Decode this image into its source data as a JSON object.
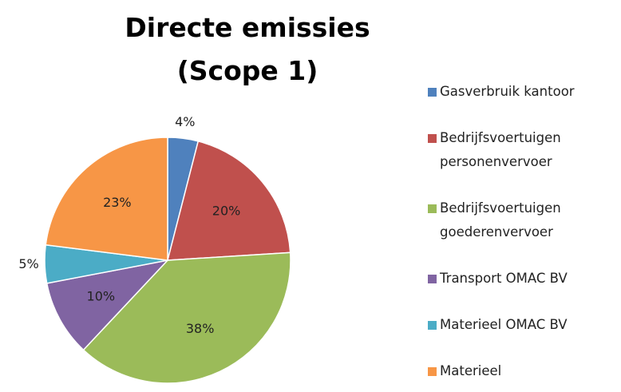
{
  "chart_data": {
    "type": "pie",
    "title": [
      "Directe emissies",
      "(Scope 1)"
    ],
    "categories": [
      "Gasverbruik kantoor",
      "Bedrijfsvoertuigen personenvervoer",
      "Bedrijfsvoertuigen goederenvervoer",
      "Transport OMAC BV",
      "Materieel OMAC BV",
      "Materieel"
    ],
    "values": [
      4,
      20,
      38,
      10,
      5,
      23
    ],
    "value_labels": [
      "4%",
      "20%",
      "38%",
      "10%",
      "5%",
      "23%"
    ],
    "colors": [
      "#4f81bd",
      "#c0504d",
      "#9bbb59",
      "#8064a2",
      "#4bacc6",
      "#f79646"
    ],
    "legend": "right"
  }
}
